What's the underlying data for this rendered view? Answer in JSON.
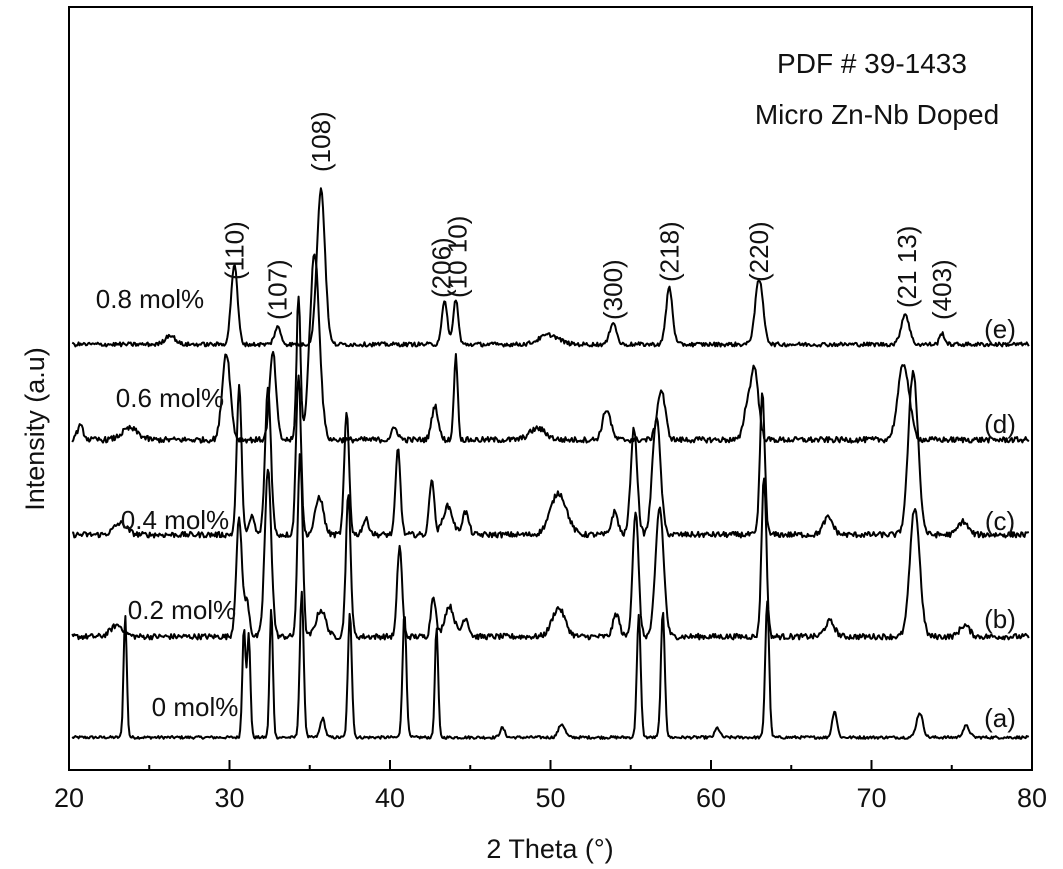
{
  "chart_data": {
    "type": "line",
    "xlabel": "2 Theta (°)",
    "ylabel": "Intensity (a.u)",
    "xlim": [
      20,
      80
    ],
    "x_ticks": [
      20,
      30,
      40,
      50,
      60,
      70,
      80
    ],
    "y_ticks_shown": false,
    "grid": false,
    "annotations": [
      "PDF # 39-1433",
      "Micro Zn-Nb Doped"
    ],
    "series": [
      {
        "name": "0 mol%",
        "panel": "(a)",
        "baseline": 0.4,
        "noise": 0.15,
        "peaks": [
          [
            23.5,
            6.4,
            0.1
          ],
          [
            30.9,
            5.8,
            0.1
          ],
          [
            31.2,
            5.4,
            0.1
          ],
          [
            32.6,
            6.8,
            0.1
          ],
          [
            34.5,
            7.6,
            0.12
          ],
          [
            35.8,
            1.0,
            0.15
          ],
          [
            37.5,
            6.6,
            0.12
          ],
          [
            40.9,
            6.5,
            0.12
          ],
          [
            42.9,
            5.8,
            0.1
          ],
          [
            47.0,
            0.5,
            0.15
          ],
          [
            50.7,
            0.7,
            0.2
          ],
          [
            55.5,
            6.4,
            0.12
          ],
          [
            57.0,
            6.6,
            0.12
          ],
          [
            60.4,
            0.5,
            0.15
          ],
          [
            63.5,
            7.2,
            0.12
          ],
          [
            67.7,
            1.4,
            0.15
          ],
          [
            73.0,
            1.3,
            0.2
          ],
          [
            75.9,
            0.6,
            0.2
          ]
        ]
      },
      {
        "name": "0.2 mol%",
        "panel": "(b)",
        "baseline": 0.6,
        "noise": 0.3,
        "peaks": [
          [
            23.0,
            0.6,
            0.4
          ],
          [
            30.6,
            6.2,
            0.18
          ],
          [
            31.1,
            1.8,
            0.15
          ],
          [
            32.4,
            8.8,
            0.2
          ],
          [
            34.4,
            9.8,
            0.15
          ],
          [
            35.7,
            1.4,
            0.3
          ],
          [
            37.4,
            7.4,
            0.15
          ],
          [
            40.6,
            4.8,
            0.15
          ],
          [
            42.7,
            2.2,
            0.15
          ],
          [
            43.7,
            1.6,
            0.3
          ],
          [
            44.7,
            1.0,
            0.2
          ],
          [
            50.5,
            1.5,
            0.4
          ],
          [
            54.1,
            1.2,
            0.2
          ],
          [
            55.3,
            6.6,
            0.18
          ],
          [
            56.8,
            6.8,
            0.25
          ],
          [
            63.3,
            8.4,
            0.15
          ],
          [
            67.4,
            0.8,
            0.3
          ],
          [
            72.7,
            6.8,
            0.3
          ],
          [
            75.8,
            0.6,
            0.3
          ]
        ]
      },
      {
        "name": "0.4 mol%",
        "panel": "(c)",
        "baseline": 0.7,
        "noise": 0.3,
        "peaks": [
          [
            23.2,
            0.6,
            0.4
          ],
          [
            30.6,
            7.8,
            0.15
          ],
          [
            31.4,
            1.0,
            0.15
          ],
          [
            32.4,
            7.8,
            0.18
          ],
          [
            34.3,
            8.5,
            0.15
          ],
          [
            35.6,
            2.0,
            0.25
          ],
          [
            37.3,
            6.4,
            0.15
          ],
          [
            38.5,
            0.8,
            0.2
          ],
          [
            40.5,
            4.5,
            0.15
          ],
          [
            42.6,
            3.0,
            0.15
          ],
          [
            43.6,
            1.5,
            0.3
          ],
          [
            44.7,
            1.2,
            0.2
          ],
          [
            50.5,
            2.2,
            0.5
          ],
          [
            54.0,
            1.2,
            0.2
          ],
          [
            55.2,
            5.6,
            0.2
          ],
          [
            56.6,
            6.2,
            0.25
          ],
          [
            63.2,
            7.4,
            0.15
          ],
          [
            67.3,
            0.9,
            0.3
          ],
          [
            72.6,
            8.6,
            0.3
          ],
          [
            75.7,
            0.7,
            0.3
          ]
        ]
      },
      {
        "name": "0.6 mol%",
        "panel": "(d)",
        "baseline": 0.8,
        "noise": 0.3,
        "peaks": [
          [
            20.7,
            0.7,
            0.2
          ],
          [
            23.8,
            0.6,
            0.5
          ],
          [
            29.8,
            4.6,
            0.25
          ],
          [
            32.7,
            4.6,
            0.2
          ],
          [
            34.3,
            7.6,
            0.12
          ],
          [
            35.3,
            9.8,
            0.3
          ],
          [
            40.3,
            0.6,
            0.2
          ],
          [
            42.8,
            1.8,
            0.2
          ],
          [
            44.1,
            4.4,
            0.12
          ],
          [
            49.2,
            0.6,
            0.5
          ],
          [
            53.5,
            1.6,
            0.25
          ],
          [
            56.9,
            2.6,
            0.25
          ],
          [
            62.2,
            1.4,
            0.2
          ],
          [
            62.7,
            3.8,
            0.25
          ],
          [
            72.0,
            4.0,
            0.35
          ]
        ]
      },
      {
        "name": "0.8 mol%",
        "panel": "(e)",
        "baseline": 0.4,
        "noise": 0.22,
        "peaks": [
          [
            26.3,
            0.5,
            0.3
          ],
          [
            30.3,
            4.2,
            0.2
          ],
          [
            33.0,
            0.9,
            0.2
          ],
          [
            35.7,
            8.2,
            0.25
          ],
          [
            43.4,
            2.2,
            0.18
          ],
          [
            44.1,
            2.4,
            0.15
          ],
          [
            49.9,
            0.5,
            0.6
          ],
          [
            53.9,
            1.2,
            0.2
          ],
          [
            57.4,
            3.0,
            0.2
          ],
          [
            63.0,
            3.4,
            0.25
          ],
          [
            72.1,
            1.6,
            0.25
          ],
          [
            74.4,
            0.6,
            0.15
          ]
        ]
      }
    ],
    "peak_labels": [
      {
        "label": "(110)",
        "x": 30.3
      },
      {
        "label": "(107)",
        "x": 33.0
      },
      {
        "label": "(108)",
        "x": 35.7
      },
      {
        "label": "(206)",
        "x": 43.2
      },
      {
        "label": "(10 10)",
        "x": 44.2
      },
      {
        "label": "(300)",
        "x": 53.9
      },
      {
        "label": "(218)",
        "x": 57.4
      },
      {
        "label": "(220)",
        "x": 63.0
      },
      {
        "label": "(21 13)",
        "x": 72.2
      },
      {
        "label": "(403)",
        "x": 74.4
      }
    ]
  }
}
